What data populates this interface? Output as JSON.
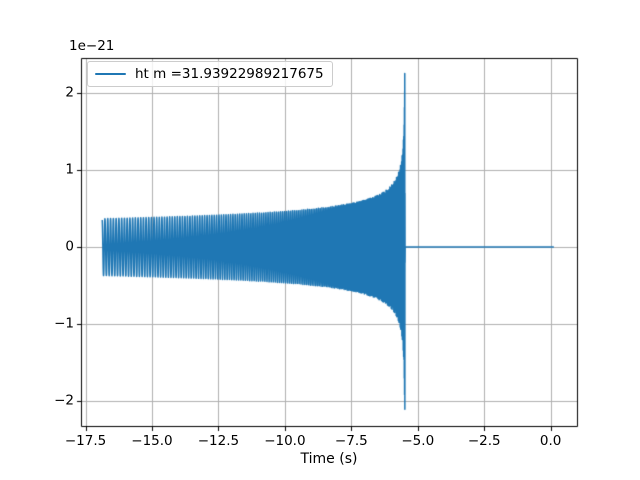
{
  "figure": {
    "background": "#ffffff",
    "axes_edge_color": "#000000",
    "tick_color": "#000000",
    "text_color": "#000000"
  },
  "chart_data": {
    "type": "line",
    "title": "",
    "xlabel": "Time (s)",
    "ylabel": "",
    "y_offset_label": "1e−21",
    "xlim": [
      -17.67,
      0.99
    ],
    "ylim": [
      -2.34,
      2.46
    ],
    "xticks": [
      -17.5,
      -15.0,
      -12.5,
      -10.0,
      -7.5,
      -5.0,
      -2.5,
      0.0
    ],
    "xtick_labels": [
      "−17.5",
      "−15.0",
      "−12.5",
      "−10.0",
      "−7.5",
      "−5.0",
      "−2.5",
      "0.0"
    ],
    "yticks": [
      2,
      1,
      0,
      -1,
      -2
    ],
    "ytick_labels": [
      "2",
      "1",
      "0",
      "−1",
      "−2"
    ],
    "grid": true,
    "grid_color": "#b0b0b0",
    "legend": {
      "position": "upper left",
      "label": "ht m =31.93922989217675"
    },
    "series": [
      {
        "name": "ht m =31.93922989217675",
        "color": "#1f77b4",
        "line_width": 1.5,
        "description": "Gravitational-wave inspiral chirp (units 1e-21): oscillation with slowly increasing amplitude and frequency starting near t=-16.9 s, diverging to a sharp spike at merger near t=-5.49 s (peak +2.26, trough -2.11), then flat at 0 until t=0.12 s",
        "model": {
          "kind": "newtonian_chirp",
          "t_start": -16.87,
          "t_peak": -5.49,
          "t_coalescence": -5.482,
          "t_end": 0.12,
          "amp_start": 0.37,
          "amp_peak": 2.26,
          "amp_trough": -2.11,
          "freq_start_hz": 9.4,
          "amp_exponent": -0.25,
          "freq_exponent": -0.375,
          "start_phase": 0.3,
          "post_merger_value": 0,
          "y_scale": "1e-21"
        },
        "envelope_samples": {
          "t": [
            -16.87,
            -15.0,
            -12.5,
            -10.0,
            -7.5,
            -6.5,
            -6.0,
            -5.7,
            -5.6,
            -5.55,
            -5.5,
            -5.49
          ],
          "amplitude": [
            0.37,
            0.39,
            0.42,
            0.47,
            0.55,
            0.67,
            0.78,
            0.94,
            1.16,
            1.35,
            1.75,
            2.26
          ]
        }
      }
    ]
  }
}
